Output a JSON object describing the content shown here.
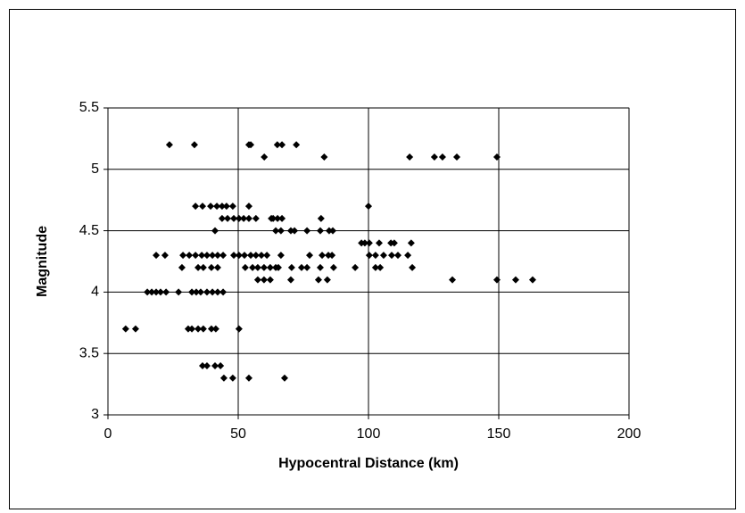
{
  "chart_data": {
    "type": "scatter",
    "xlabel": "Hypocentral Distance (km)",
    "ylabel": "Magnitude",
    "xlim": [
      0,
      200
    ],
    "xticks": [
      0,
      50,
      100,
      150,
      200
    ],
    "ylim": [
      3,
      5.5
    ],
    "yticks": [
      3,
      3.5,
      4,
      4.5,
      5,
      5.5
    ],
    "grid": true,
    "color": "#000000",
    "x": [
      23.6,
      33.2,
      54.1,
      54.8,
      65,
      66.8,
      72.3,
      60,
      83,
      115.8,
      125.3,
      128.4,
      133.9,
      149.3,
      33.6,
      36.3,
      39.4,
      41.8,
      43.8,
      45.5,
      47.9,
      54.1,
      100,
      43.8,
      45.9,
      48.3,
      50.3,
      52.1,
      54.1,
      56.8,
      62.7,
      63.4,
      65.1,
      66.8,
      81.8,
      41.1,
      64.4,
      66.4,
      70.2,
      71.6,
      76.4,
      81.5,
      84.9,
      86.3,
      97.3,
      98.6,
      100.3,
      104.1,
      108.6,
      109.9,
      116.4,
      18.5,
      21.9,
      28.8,
      31.2,
      33.6,
      36,
      38,
      40.1,
      42.1,
      44.2,
      48.3,
      50.3,
      52.4,
      54.8,
      56.8,
      58.9,
      61,
      66.4,
      77.4,
      82.2,
      84.6,
      86,
      100.3,
      102.7,
      105.8,
      108.9,
      111.3,
      115.1,
      28.4,
      34.6,
      36.6,
      39.7,
      42.1,
      52.7,
      55.5,
      57.5,
      59.9,
      62.3,
      64.4,
      65.4,
      70.5,
      74.3,
      76.4,
      81.5,
      86.6,
      94.9,
      102.7,
      104.5,
      116.8,
      57.5,
      59.9,
      62.3,
      70.2,
      80.8,
      84.2,
      132.2,
      149.3,
      156.5,
      163,
      15.1,
      16.8,
      18.5,
      20.2,
      22.3,
      27.1,
      32.2,
      33.9,
      35.6,
      38,
      40.1,
      42.1,
      44.2,
      6.8,
      10.6,
      30.8,
      32.2,
      34.6,
      36.6,
      39.7,
      41.4,
      50.3,
      36.3,
      38,
      41.1,
      43.2,
      44.5,
      47.9,
      54.1,
      67.8
    ],
    "y": [
      5.2,
      5.2,
      5.2,
      5.2,
      5.2,
      5.2,
      5.2,
      5.1,
      5.1,
      5.1,
      5.1,
      5.1,
      5.1,
      5.1,
      4.7,
      4.7,
      4.7,
      4.7,
      4.7,
      4.7,
      4.7,
      4.7,
      4.7,
      4.6,
      4.6,
      4.6,
      4.6,
      4.6,
      4.6,
      4.6,
      4.6,
      4.6,
      4.6,
      4.6,
      4.6,
      4.5,
      4.5,
      4.5,
      4.5,
      4.5,
      4.5,
      4.5,
      4.5,
      4.5,
      4.4,
      4.4,
      4.4,
      4.4,
      4.4,
      4.4,
      4.4,
      4.3,
      4.3,
      4.3,
      4.3,
      4.3,
      4.3,
      4.3,
      4.3,
      4.3,
      4.3,
      4.3,
      4.3,
      4.3,
      4.3,
      4.3,
      4.3,
      4.3,
      4.3,
      4.3,
      4.3,
      4.3,
      4.3,
      4.3,
      4.3,
      4.3,
      4.3,
      4.3,
      4.3,
      4.2,
      4.2,
      4.2,
      4.2,
      4.2,
      4.2,
      4.2,
      4.2,
      4.2,
      4.2,
      4.2,
      4.2,
      4.2,
      4.2,
      4.2,
      4.2,
      4.2,
      4.2,
      4.2,
      4.2,
      4.2,
      4.1,
      4.1,
      4.1,
      4.1,
      4.1,
      4.1,
      4.1,
      4.1,
      4.1,
      4.1,
      4,
      4,
      4,
      4,
      4,
      4,
      4,
      4,
      4,
      4,
      4,
      4,
      4,
      3.7,
      3.7,
      3.7,
      3.7,
      3.7,
      3.7,
      3.7,
      3.7,
      3.7,
      3.4,
      3.4,
      3.4,
      3.4,
      3.3,
      3.3,
      3.3,
      3.3
    ]
  }
}
